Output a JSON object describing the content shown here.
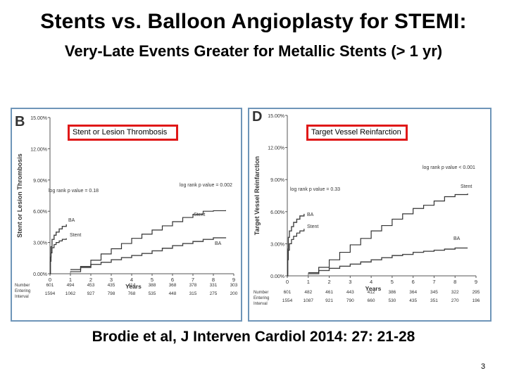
{
  "slide": {
    "title": "Stents vs. Balloon Angioplasty for STEMI:",
    "subtitle": "Very-Late Events Greater for Metallic Stents (> 1 yr)",
    "citation": "Brodie et al, J Interven Cardiol 2014: 27: 21-28",
    "page_number": "3"
  },
  "chart_data": [
    {
      "type": "line",
      "panel_letter": "B",
      "boxed_label": "Stent or Lesion Thrombosis",
      "ylabel": "Stent or Lesion Thrombosis",
      "xlabel": "Years",
      "ylim": [
        0,
        15
      ],
      "yticks": [
        "0.00%",
        "3.00%",
        "6.00%",
        "9.00%",
        "12.00%",
        "15.00%"
      ],
      "ytick_values": [
        0,
        3,
        6,
        9,
        12,
        15
      ],
      "xticks": [
        "0",
        "1",
        "2",
        "3",
        "4",
        "5",
        "6",
        "7",
        "8",
        "9"
      ],
      "annotations": [
        "log rank p value = 0.18",
        "log rank p value = 0.002"
      ],
      "series": [
        {
          "name": "BA",
          "end_label": "BA",
          "early_label": "BA",
          "x": [
            0,
            0.02,
            0.05,
            0.1,
            0.2,
            0.3,
            0.45,
            0.6,
            0.8,
            1.0,
            1.5,
            2.0,
            2.5,
            3.0,
            3.5,
            4.0,
            4.5,
            5.0,
            5.5,
            6.0,
            6.5,
            7.0,
            7.5,
            8.0,
            8.6
          ],
          "y": [
            0,
            1.6,
            2.6,
            3.3,
            3.7,
            4.0,
            4.3,
            4.55,
            4.75,
            0.4,
            0.6,
            0.9,
            1.1,
            1.35,
            1.55,
            1.75,
            1.95,
            2.2,
            2.45,
            2.7,
            2.9,
            3.1,
            3.3,
            3.45,
            3.5
          ]
        },
        {
          "name": "Stent",
          "end_label": "Stent",
          "early_label": "Stent",
          "x": [
            0,
            0.02,
            0.05,
            0.1,
            0.2,
            0.3,
            0.45,
            0.6,
            0.8,
            1.0,
            1.5,
            2.0,
            2.5,
            3.0,
            3.5,
            4.0,
            4.5,
            5.0,
            5.5,
            6.0,
            6.5,
            7.0,
            7.5,
            8.0,
            8.6
          ],
          "y": [
            0,
            1.2,
            2.0,
            2.5,
            2.8,
            3.0,
            3.15,
            3.3,
            3.4,
            0.2,
            0.7,
            1.3,
            1.9,
            2.4,
            2.9,
            3.4,
            3.8,
            4.2,
            4.6,
            5.0,
            5.4,
            5.7,
            6.0,
            6.05,
            6.1
          ]
        }
      ],
      "numbers_at_risk": {
        "label": [
          "Number",
          "Entering",
          "Interval"
        ],
        "rows": [
          [
            "601",
            "494",
            "453",
            "435",
            "414",
            "388",
            "368",
            "378",
            "331",
            "303"
          ],
          [
            "1594",
            "1062",
            "927",
            "798",
            "768",
            "535",
            "448",
            "315",
            "275",
            "200"
          ]
        ]
      }
    },
    {
      "type": "line",
      "panel_letter": "D",
      "boxed_label": "Target Vessel Reinfarction",
      "ylabel": "Target Vessel Reinfarction",
      "xlabel": "Years",
      "ylim": [
        0,
        15
      ],
      "yticks": [
        "0.00%",
        "3.00%",
        "6.00%",
        "9.00%",
        "12.00%",
        "15.00%"
      ],
      "ytick_values": [
        0,
        3,
        6,
        9,
        12,
        15
      ],
      "xticks": [
        "0",
        "1",
        "2",
        "3",
        "4",
        "5",
        "6",
        "7",
        "8",
        "9"
      ],
      "annotations": [
        "log rank p value = 0.33",
        "log rank p value < 0.001"
      ],
      "series": [
        {
          "name": "BA",
          "end_label": "BA",
          "early_label": "BA",
          "x": [
            0,
            0.02,
            0.05,
            0.1,
            0.2,
            0.3,
            0.45,
            0.6,
            0.8,
            1.0,
            1.5,
            2.0,
            2.5,
            3.0,
            3.5,
            4.0,
            4.5,
            5.0,
            5.5,
            6.0,
            6.5,
            7.0,
            7.5,
            8.0,
            8.6
          ],
          "y": [
            0,
            2.5,
            3.6,
            4.2,
            4.6,
            5.0,
            5.3,
            5.6,
            5.8,
            0.2,
            0.5,
            0.7,
            0.9,
            1.1,
            1.3,
            1.5,
            1.7,
            1.9,
            2.0,
            2.2,
            2.3,
            2.4,
            2.5,
            2.6,
            2.6
          ]
        },
        {
          "name": "Stent",
          "end_label": "Stent",
          "early_label": "Stent",
          "x": [
            0,
            0.02,
            0.05,
            0.1,
            0.2,
            0.3,
            0.45,
            0.6,
            0.8,
            1.0,
            1.5,
            2.0,
            2.5,
            3.0,
            3.5,
            4.0,
            4.5,
            5.0,
            5.5,
            6.0,
            6.5,
            7.0,
            7.5,
            8.0,
            8.6
          ],
          "y": [
            0,
            1.5,
            2.4,
            3.0,
            3.4,
            3.7,
            4.0,
            4.2,
            4.4,
            0.3,
            0.8,
            1.5,
            2.2,
            2.9,
            3.5,
            4.2,
            4.7,
            5.3,
            5.8,
            6.3,
            6.6,
            7.0,
            7.4,
            7.6,
            7.7
          ]
        }
      ],
      "numbers_at_risk": {
        "label": [
          "Number",
          "Entering",
          "Interval"
        ],
        "rows": [
          [
            "601",
            "482",
            "461",
            "443",
            "412",
            "386",
            "364",
            "345",
            "322",
            "295"
          ],
          [
            "1554",
            "1087",
            "921",
            "790",
            "660",
            "530",
            "435",
            "351",
            "270",
            "196"
          ]
        ]
      }
    }
  ],
  "colors": {
    "panel_border": "#6e95b8",
    "label_box_border": "#e01818",
    "stent_line": "#333333",
    "ba_line": "#444444"
  }
}
